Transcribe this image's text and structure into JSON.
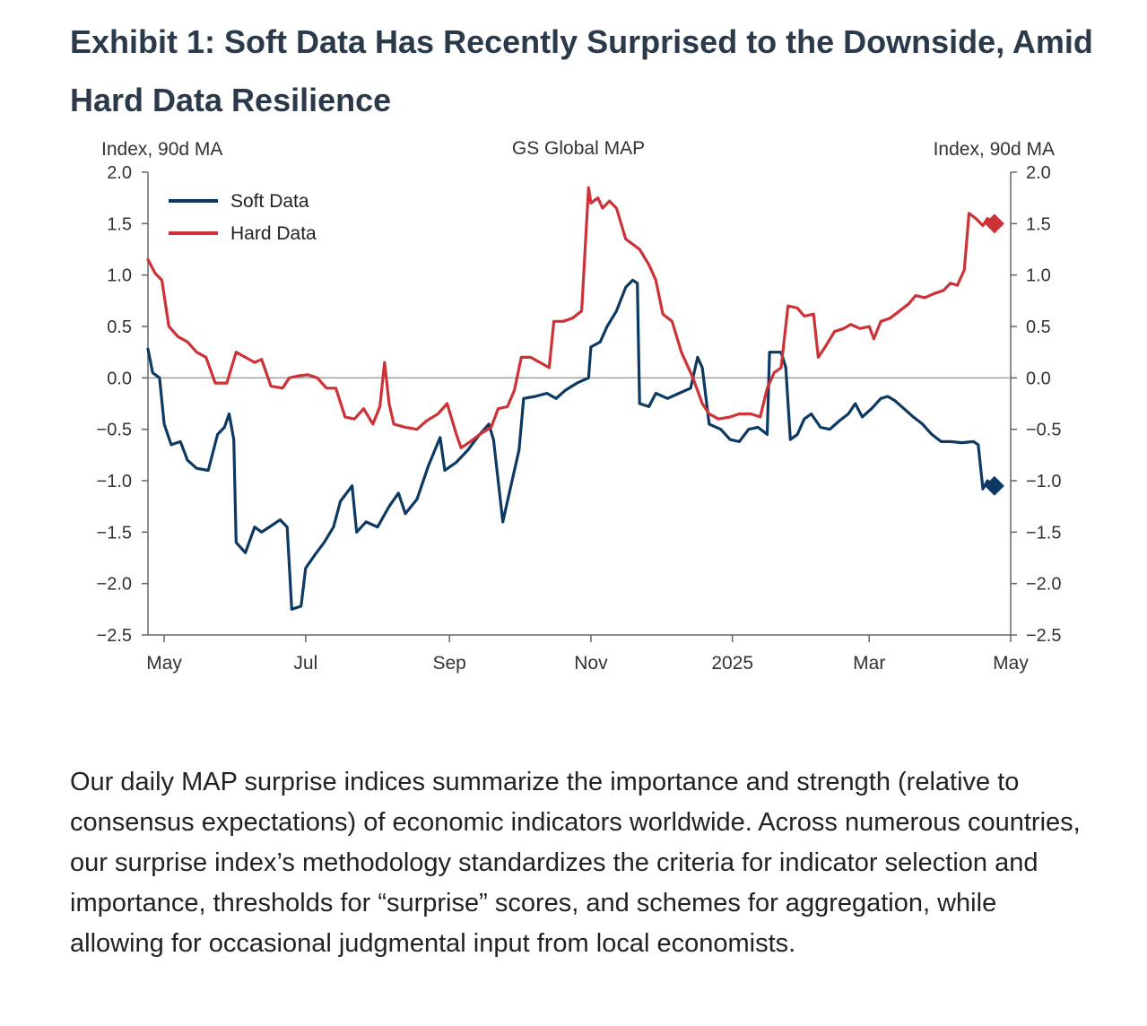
{
  "page": {
    "title": "Exhibit 1: Soft Data Has Recently Surprised to the Downside, Amid Hard Data Resilience",
    "body": "Our daily MAP surprise indices summarize the importance and strength (relative to consensus expectations) of economic indicators worldwide. Across numerous countries, our surprise index’s methodology standardizes the criteria for indicator selection and importance, thresholds for “surprise” scores, and schemes for aggregation, while allowing for occasional judgmental input from local economists."
  },
  "colors": {
    "soft": "#0d3a63",
    "hard": "#cc3236",
    "axis": "#666666",
    "zero": "#9a9a9a",
    "text": "#222222"
  },
  "chart_data": {
    "type": "line",
    "title": "GS Global MAP",
    "ylabel_left": "Index, 90d MA",
    "ylabel_right": "Index, 90d MA",
    "ylim": [
      -2.5,
      2.0
    ],
    "yticks": [
      2.0,
      1.5,
      1.0,
      0.5,
      0.0,
      -0.5,
      -1.0,
      -1.5,
      -2.0,
      -2.5
    ],
    "ytick_labels": [
      "2.0",
      "1.5",
      "1.0",
      "0.5",
      "0.0",
      "−0.5",
      "−1.0",
      "−1.5",
      "−2.0",
      "−2.5"
    ],
    "xlim": [
      "2024-04-24",
      "2025-05-01"
    ],
    "xticks": [
      "2024-05-01",
      "2024-07-01",
      "2024-09-01",
      "2024-11-01",
      "2025-01-01",
      "2025-03-01",
      "2025-05-01"
    ],
    "xtick_labels": [
      "May",
      "Jul",
      "Sep",
      "Nov",
      "2025",
      "Mar",
      "May"
    ],
    "zero_line": true,
    "grid": false,
    "legend_position": "top-left",
    "series": [
      {
        "name": "Soft Data",
        "color": "#0d3a63",
        "end_marker": "diamond",
        "points": [
          [
            "2024-04-24",
            0.28
          ],
          [
            "2024-04-26",
            0.05
          ],
          [
            "2024-04-29",
            0.0
          ],
          [
            "2024-05-01",
            -0.45
          ],
          [
            "2024-05-04",
            -0.65
          ],
          [
            "2024-05-08",
            -0.62
          ],
          [
            "2024-05-11",
            -0.8
          ],
          [
            "2024-05-15",
            -0.88
          ],
          [
            "2024-05-20",
            -0.9
          ],
          [
            "2024-05-24",
            -0.55
          ],
          [
            "2024-05-27",
            -0.48
          ],
          [
            "2024-05-29",
            -0.35
          ],
          [
            "2024-05-31",
            -0.6
          ],
          [
            "2024-06-01",
            -1.6
          ],
          [
            "2024-06-05",
            -1.7
          ],
          [
            "2024-06-09",
            -1.45
          ],
          [
            "2024-06-12",
            -1.5
          ],
          [
            "2024-06-16",
            -1.44
          ],
          [
            "2024-06-20",
            -1.38
          ],
          [
            "2024-06-23",
            -1.45
          ],
          [
            "2024-06-25",
            -2.25
          ],
          [
            "2024-06-29",
            -2.22
          ],
          [
            "2024-07-01",
            -1.85
          ],
          [
            "2024-07-05",
            -1.72
          ],
          [
            "2024-07-09",
            -1.6
          ],
          [
            "2024-07-13",
            -1.45
          ],
          [
            "2024-07-16",
            -1.2
          ],
          [
            "2024-07-21",
            -1.05
          ],
          [
            "2024-07-23",
            -1.5
          ],
          [
            "2024-07-27",
            -1.4
          ],
          [
            "2024-08-01",
            -1.45
          ],
          [
            "2024-08-06",
            -1.25
          ],
          [
            "2024-08-10",
            -1.12
          ],
          [
            "2024-08-13",
            -1.32
          ],
          [
            "2024-08-18",
            -1.18
          ],
          [
            "2024-08-23",
            -0.85
          ],
          [
            "2024-08-28",
            -0.58
          ],
          [
            "2024-08-30",
            -0.9
          ],
          [
            "2024-09-04",
            -0.82
          ],
          [
            "2024-09-09",
            -0.7
          ],
          [
            "2024-09-14",
            -0.55
          ],
          [
            "2024-09-18",
            -0.45
          ],
          [
            "2024-09-20",
            -0.6
          ],
          [
            "2024-09-24",
            -1.4
          ],
          [
            "2024-09-28",
            -1.0
          ],
          [
            "2024-10-01",
            -0.7
          ],
          [
            "2024-10-03",
            -0.2
          ],
          [
            "2024-10-08",
            -0.18
          ],
          [
            "2024-10-13",
            -0.15
          ],
          [
            "2024-10-17",
            -0.2
          ],
          [
            "2024-10-21",
            -0.12
          ],
          [
            "2024-10-26",
            -0.05
          ],
          [
            "2024-10-31",
            0.0
          ],
          [
            "2024-11-01",
            0.3
          ],
          [
            "2024-11-05",
            0.35
          ],
          [
            "2024-11-08",
            0.5
          ],
          [
            "2024-11-12",
            0.65
          ],
          [
            "2024-11-16",
            0.88
          ],
          [
            "2024-11-19",
            0.95
          ],
          [
            "2024-11-21",
            0.92
          ],
          [
            "2024-11-22",
            -0.25
          ],
          [
            "2024-11-26",
            -0.28
          ],
          [
            "2024-11-29",
            -0.15
          ],
          [
            "2024-12-04",
            -0.2
          ],
          [
            "2024-12-09",
            -0.15
          ],
          [
            "2024-12-14",
            -0.1
          ],
          [
            "2024-12-17",
            0.2
          ],
          [
            "2024-12-19",
            0.1
          ],
          [
            "2024-12-22",
            -0.45
          ],
          [
            "2024-12-27",
            -0.5
          ],
          [
            "2024-12-31",
            -0.6
          ],
          [
            "2025-01-04",
            -0.62
          ],
          [
            "2025-01-08",
            -0.5
          ],
          [
            "2025-01-12",
            -0.48
          ],
          [
            "2025-01-16",
            -0.55
          ],
          [
            "2025-01-17",
            0.25
          ],
          [
            "2025-01-22",
            0.25
          ],
          [
            "2025-01-24",
            0.1
          ],
          [
            "2025-01-26",
            -0.6
          ],
          [
            "2025-01-29",
            -0.55
          ],
          [
            "2025-02-01",
            -0.4
          ],
          [
            "2025-02-04",
            -0.35
          ],
          [
            "2025-02-08",
            -0.48
          ],
          [
            "2025-02-12",
            -0.5
          ],
          [
            "2025-02-16",
            -0.42
          ],
          [
            "2025-02-20",
            -0.35
          ],
          [
            "2025-02-23",
            -0.25
          ],
          [
            "2025-02-26",
            -0.38
          ],
          [
            "2025-03-02",
            -0.3
          ],
          [
            "2025-03-06",
            -0.2
          ],
          [
            "2025-03-09",
            -0.18
          ],
          [
            "2025-03-12",
            -0.22
          ],
          [
            "2025-03-16",
            -0.3
          ],
          [
            "2025-03-20",
            -0.38
          ],
          [
            "2025-03-24",
            -0.45
          ],
          [
            "2025-03-28",
            -0.55
          ],
          [
            "2025-04-01",
            -0.62
          ],
          [
            "2025-04-05",
            -0.62
          ],
          [
            "2025-04-10",
            -0.63
          ],
          [
            "2025-04-15",
            -0.62
          ],
          [
            "2025-04-17",
            -0.65
          ],
          [
            "2025-04-19",
            -1.08
          ],
          [
            "2025-04-21",
            -1.0
          ],
          [
            "2025-04-24",
            -1.05
          ]
        ]
      },
      {
        "name": "Hard Data",
        "color": "#cc3236",
        "end_marker": "diamond",
        "points": [
          [
            "2024-04-24",
            1.15
          ],
          [
            "2024-04-27",
            1.02
          ],
          [
            "2024-04-30",
            0.95
          ],
          [
            "2024-05-03",
            0.5
          ],
          [
            "2024-05-07",
            0.4
          ],
          [
            "2024-05-11",
            0.35
          ],
          [
            "2024-05-15",
            0.25
          ],
          [
            "2024-05-19",
            0.2
          ],
          [
            "2024-05-23",
            -0.05
          ],
          [
            "2024-05-28",
            -0.05
          ],
          [
            "2024-06-01",
            0.25
          ],
          [
            "2024-06-05",
            0.2
          ],
          [
            "2024-06-09",
            0.15
          ],
          [
            "2024-06-12",
            0.18
          ],
          [
            "2024-06-16",
            -0.08
          ],
          [
            "2024-06-21",
            -0.1
          ],
          [
            "2024-06-24",
            0.0
          ],
          [
            "2024-06-28",
            0.02
          ],
          [
            "2024-07-02",
            0.03
          ],
          [
            "2024-07-06",
            0.0
          ],
          [
            "2024-07-10",
            -0.1
          ],
          [
            "2024-07-14",
            -0.1
          ],
          [
            "2024-07-18",
            -0.38
          ],
          [
            "2024-07-22",
            -0.4
          ],
          [
            "2024-07-26",
            -0.3
          ],
          [
            "2024-07-30",
            -0.45
          ],
          [
            "2024-08-02",
            -0.28
          ],
          [
            "2024-08-04",
            0.15
          ],
          [
            "2024-08-06",
            -0.25
          ],
          [
            "2024-08-08",
            -0.45
          ],
          [
            "2024-08-13",
            -0.48
          ],
          [
            "2024-08-18",
            -0.5
          ],
          [
            "2024-08-22",
            -0.42
          ],
          [
            "2024-08-27",
            -0.35
          ],
          [
            "2024-08-31",
            -0.25
          ],
          [
            "2024-09-04",
            -0.55
          ],
          [
            "2024-09-06",
            -0.68
          ],
          [
            "2024-09-10",
            -0.62
          ],
          [
            "2024-09-14",
            -0.55
          ],
          [
            "2024-09-19",
            -0.48
          ],
          [
            "2024-09-22",
            -0.3
          ],
          [
            "2024-09-26",
            -0.28
          ],
          [
            "2024-09-29",
            -0.12
          ],
          [
            "2024-10-02",
            0.2
          ],
          [
            "2024-10-06",
            0.2
          ],
          [
            "2024-10-10",
            0.15
          ],
          [
            "2024-10-14",
            0.1
          ],
          [
            "2024-10-16",
            0.55
          ],
          [
            "2024-10-20",
            0.55
          ],
          [
            "2024-10-24",
            0.58
          ],
          [
            "2024-10-28",
            0.65
          ],
          [
            "2024-10-31",
            1.85
          ],
          [
            "2024-11-01",
            1.7
          ],
          [
            "2024-11-04",
            1.75
          ],
          [
            "2024-11-06",
            1.65
          ],
          [
            "2024-11-09",
            1.72
          ],
          [
            "2024-11-12",
            1.65
          ],
          [
            "2024-11-16",
            1.35
          ],
          [
            "2024-11-19",
            1.3
          ],
          [
            "2024-11-22",
            1.25
          ],
          [
            "2024-11-26",
            1.1
          ],
          [
            "2024-11-29",
            0.95
          ],
          [
            "2024-12-02",
            0.62
          ],
          [
            "2024-12-06",
            0.55
          ],
          [
            "2024-12-10",
            0.25
          ],
          [
            "2024-12-15",
            0.0
          ],
          [
            "2024-12-19",
            -0.25
          ],
          [
            "2024-12-22",
            -0.35
          ],
          [
            "2024-12-26",
            -0.4
          ],
          [
            "2024-12-31",
            -0.38
          ],
          [
            "2025-01-04",
            -0.35
          ],
          [
            "2025-01-09",
            -0.35
          ],
          [
            "2025-01-13",
            -0.38
          ],
          [
            "2025-01-16",
            -0.1
          ],
          [
            "2025-01-19",
            0.05
          ],
          [
            "2025-01-22",
            0.1
          ],
          [
            "2025-01-25",
            0.7
          ],
          [
            "2025-01-29",
            0.68
          ],
          [
            "2025-02-01",
            0.6
          ],
          [
            "2025-02-05",
            0.62
          ],
          [
            "2025-02-07",
            0.2
          ],
          [
            "2025-02-10",
            0.3
          ],
          [
            "2025-02-14",
            0.45
          ],
          [
            "2025-02-18",
            0.48
          ],
          [
            "2025-02-21",
            0.52
          ],
          [
            "2025-02-25",
            0.48
          ],
          [
            "2025-03-01",
            0.5
          ],
          [
            "2025-03-03",
            0.38
          ],
          [
            "2025-03-06",
            0.55
          ],
          [
            "2025-03-10",
            0.58
          ],
          [
            "2025-03-14",
            0.65
          ],
          [
            "2025-03-18",
            0.72
          ],
          [
            "2025-03-21",
            0.8
          ],
          [
            "2025-03-25",
            0.78
          ],
          [
            "2025-03-29",
            0.82
          ],
          [
            "2025-04-02",
            0.85
          ],
          [
            "2025-04-05",
            0.92
          ],
          [
            "2025-04-08",
            0.9
          ],
          [
            "2025-04-11",
            1.05
          ],
          [
            "2025-04-13",
            1.6
          ],
          [
            "2025-04-16",
            1.55
          ],
          [
            "2025-04-19",
            1.48
          ],
          [
            "2025-04-21",
            1.55
          ],
          [
            "2025-04-24",
            1.5
          ]
        ]
      }
    ]
  }
}
